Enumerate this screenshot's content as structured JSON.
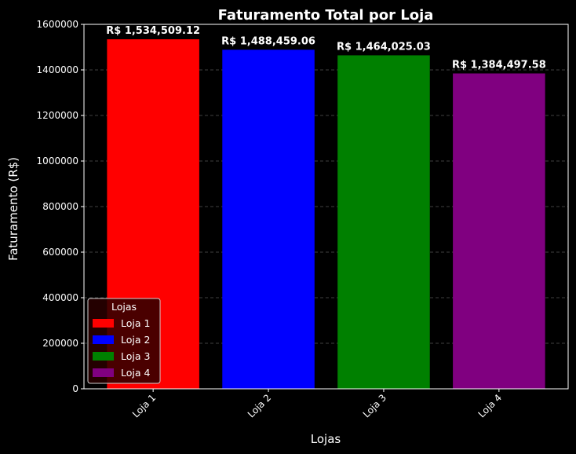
{
  "chart_data": {
    "type": "bar",
    "title": "Faturamento Total por Loja",
    "xlabel": "Lojas",
    "ylabel": "Faturamento (R$)",
    "categories": [
      "Loja 1",
      "Loja 2",
      "Loja 3",
      "Loja 4"
    ],
    "values": [
      1534509.12,
      1488459.06,
      1464025.03,
      1384497.58
    ],
    "data_labels": [
      "R$ 1,534,509.12",
      "R$ 1,488,459.06",
      "R$ 1,464,025.03",
      "R$ 1,384,497.58"
    ],
    "colors": [
      "#ff0000",
      "#0000ff",
      "#008000",
      "#800080"
    ],
    "ylim": [
      0,
      1600000
    ],
    "yticks": [
      0,
      200000,
      400000,
      600000,
      800000,
      1000000,
      1200000,
      1400000,
      1600000
    ],
    "ytick_labels": [
      "0",
      "200000",
      "400000",
      "600000",
      "800000",
      "1000000",
      "1200000",
      "1400000",
      "1600000"
    ],
    "grid": "y-dashed",
    "legend": {
      "title": "Lojas",
      "placement": "lower-left",
      "entries": [
        "Loja 1",
        "Loja 2",
        "Loja 3",
        "Loja 4"
      ]
    },
    "background": "#000000"
  }
}
